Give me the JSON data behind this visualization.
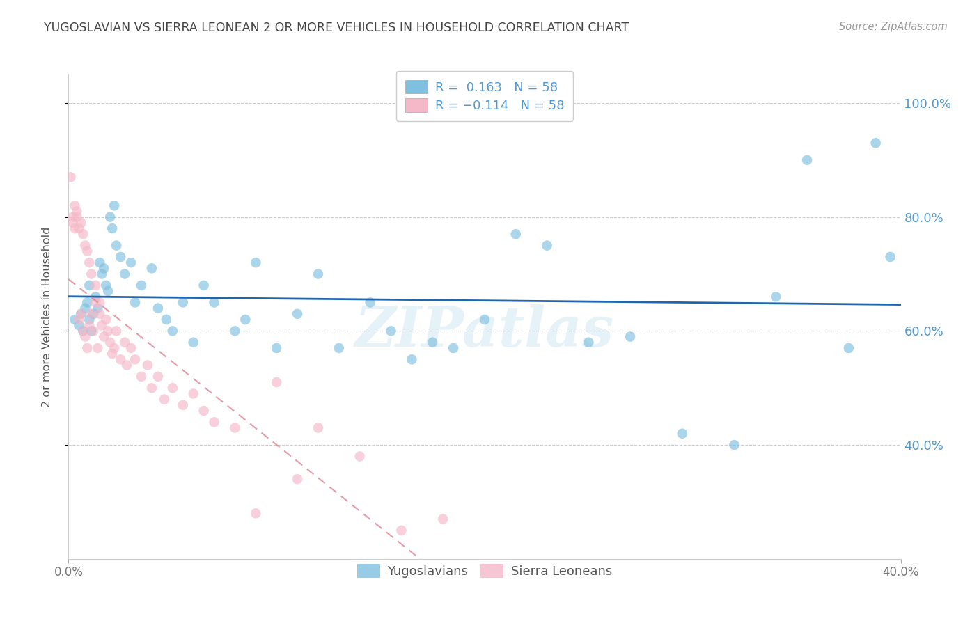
{
  "title": "YUGOSLAVIAN VS SIERRA LEONEAN 2 OR MORE VEHICLES IN HOUSEHOLD CORRELATION CHART",
  "source": "Source: ZipAtlas.com",
  "ylabel": "2 or more Vehicles in Household",
  "x_min": 0.0,
  "x_max": 0.4,
  "y_min": 0.2,
  "y_max": 1.05,
  "y_ticks": [
    0.4,
    0.6,
    0.8,
    1.0
  ],
  "y_tick_labels": [
    "40.0%",
    "60.0%",
    "80.0%",
    "100.0%"
  ],
  "watermark_text": "ZIPatlas",
  "blue_color": "#7fbfdf",
  "pink_color": "#f5b8c8",
  "blue_line_color": "#2166ac",
  "pink_line_color": "#e08898",
  "grid_color": "#cccccc",
  "right_axis_color": "#5599cc",
  "title_color": "#444444",
  "source_color": "#999999",
  "yug_x": [
    0.003,
    0.005,
    0.006,
    0.007,
    0.008,
    0.009,
    0.01,
    0.01,
    0.011,
    0.012,
    0.013,
    0.014,
    0.015,
    0.016,
    0.017,
    0.018,
    0.019,
    0.02,
    0.021,
    0.022,
    0.023,
    0.025,
    0.027,
    0.03,
    0.032,
    0.035,
    0.04,
    0.043,
    0.047,
    0.05,
    0.055,
    0.06,
    0.065,
    0.07,
    0.08,
    0.085,
    0.09,
    0.1,
    0.11,
    0.12,
    0.13,
    0.145,
    0.155,
    0.165,
    0.175,
    0.185,
    0.2,
    0.215,
    0.23,
    0.25,
    0.27,
    0.295,
    0.32,
    0.34,
    0.355,
    0.375,
    0.388,
    0.395
  ],
  "yug_y": [
    0.62,
    0.61,
    0.63,
    0.6,
    0.64,
    0.65,
    0.62,
    0.68,
    0.6,
    0.63,
    0.66,
    0.64,
    0.72,
    0.7,
    0.71,
    0.68,
    0.67,
    0.8,
    0.78,
    0.82,
    0.75,
    0.73,
    0.7,
    0.72,
    0.65,
    0.68,
    0.71,
    0.64,
    0.62,
    0.6,
    0.65,
    0.58,
    0.68,
    0.65,
    0.6,
    0.62,
    0.72,
    0.57,
    0.63,
    0.7,
    0.57,
    0.65,
    0.6,
    0.55,
    0.58,
    0.57,
    0.62,
    0.77,
    0.75,
    0.58,
    0.59,
    0.42,
    0.4,
    0.66,
    0.9,
    0.57,
    0.93,
    0.73
  ],
  "sl_x": [
    0.001,
    0.002,
    0.002,
    0.003,
    0.003,
    0.004,
    0.004,
    0.005,
    0.005,
    0.006,
    0.006,
    0.007,
    0.007,
    0.008,
    0.008,
    0.009,
    0.009,
    0.01,
    0.01,
    0.011,
    0.011,
    0.012,
    0.013,
    0.013,
    0.014,
    0.015,
    0.015,
    0.016,
    0.017,
    0.018,
    0.019,
    0.02,
    0.021,
    0.022,
    0.023,
    0.025,
    0.027,
    0.028,
    0.03,
    0.032,
    0.035,
    0.038,
    0.04,
    0.043,
    0.046,
    0.05,
    0.055,
    0.06,
    0.065,
    0.07,
    0.08,
    0.09,
    0.1,
    0.11,
    0.12,
    0.14,
    0.16,
    0.18
  ],
  "sl_y": [
    0.87,
    0.79,
    0.8,
    0.82,
    0.78,
    0.8,
    0.81,
    0.62,
    0.78,
    0.63,
    0.79,
    0.6,
    0.77,
    0.59,
    0.75,
    0.57,
    0.74,
    0.61,
    0.72,
    0.63,
    0.7,
    0.6,
    0.65,
    0.68,
    0.57,
    0.63,
    0.65,
    0.61,
    0.59,
    0.62,
    0.6,
    0.58,
    0.56,
    0.57,
    0.6,
    0.55,
    0.58,
    0.54,
    0.57,
    0.55,
    0.52,
    0.54,
    0.5,
    0.52,
    0.48,
    0.5,
    0.47,
    0.49,
    0.46,
    0.44,
    0.43,
    0.28,
    0.51,
    0.34,
    0.43,
    0.38,
    0.25,
    0.27
  ]
}
